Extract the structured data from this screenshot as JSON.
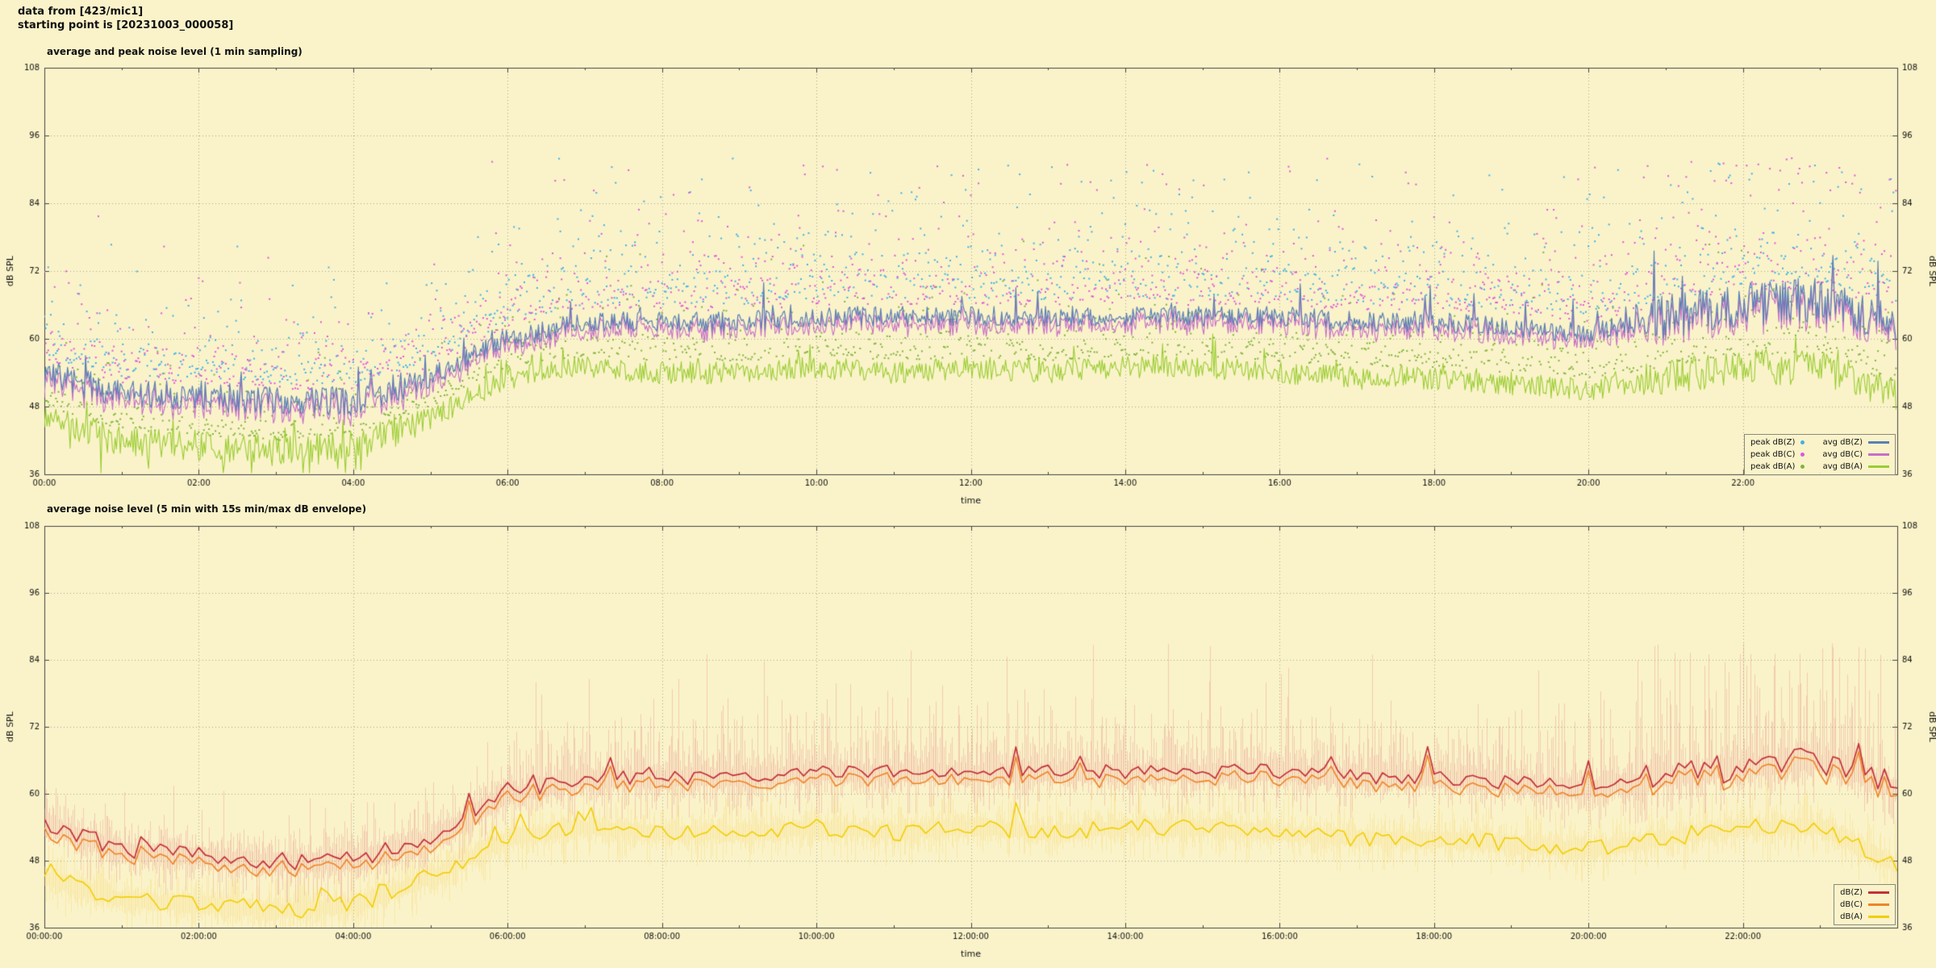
{
  "header": {
    "line1": "data from [423/mic1]",
    "line2": "starting point is [20231003_000058]"
  },
  "palette": {
    "background": "#FAF3CA",
    "grid": "#8a8a7a",
    "frame": "#444444",
    "text": "#111111"
  },
  "chart_data": [
    {
      "type": "line",
      "subtype": "lines with peak scatter",
      "title": "average and peak noise level (1 min sampling)",
      "xlabel": "time",
      "ylabel": "dB SPL",
      "ylabel_right": "dB SPL",
      "x_range_hours": [
        0,
        24
      ],
      "ylim": [
        36,
        108
      ],
      "yticks": [
        36,
        48,
        60,
        72,
        84,
        96,
        108
      ],
      "xtick_hours": [
        0,
        2,
        4,
        6,
        8,
        10,
        12,
        14,
        16,
        18,
        20,
        22
      ],
      "xtick_labels": [
        "00:00",
        "02:00",
        "04:00",
        "06:00",
        "08:00",
        "10:00",
        "12:00",
        "14:00",
        "16:00",
        "18:00",
        "20:00",
        "22:00"
      ],
      "grid": "dotted",
      "legend_position": "bottom-right",
      "legend": [
        {
          "label": "peak dB(Z)",
          "style": "dot",
          "color": "#3FB0E8"
        },
        {
          "label": "peak dB(C)",
          "style": "dot",
          "color": "#E055D8"
        },
        {
          "label": "peak dB(A)",
          "style": "dot",
          "color": "#7FB439"
        },
        {
          "label": "avg dB(Z)",
          "style": "line",
          "color": "#5B7FB4"
        },
        {
          "label": "avg dB(C)",
          "style": "line",
          "color": "#C86EC8"
        },
        {
          "label": "avg dB(A)",
          "style": "line",
          "color": "#9ACD32"
        }
      ],
      "anchor_hours": [
        0,
        1,
        2,
        3,
        4,
        5,
        6,
        7,
        8,
        9,
        10,
        11,
        12,
        13,
        14,
        15,
        16,
        17,
        18,
        19,
        20,
        21,
        22,
        23,
        24
      ],
      "series": [
        {
          "name": "avg dB(Z)",
          "color": "#5B7FB4",
          "values": [
            54,
            50,
            50,
            49,
            49,
            53,
            60,
            63,
            63,
            63,
            64,
            64,
            64,
            64,
            64,
            64,
            64,
            63,
            63,
            62,
            61,
            64,
            66,
            67,
            62
          ]
        },
        {
          "name": "avg dB(C)",
          "color": "#C86EC8",
          "values": [
            53,
            49,
            49,
            48,
            48,
            52,
            59,
            62,
            62,
            62,
            63,
            63,
            63,
            63,
            63,
            63,
            63,
            62,
            62,
            61,
            60,
            63,
            65,
            66,
            61
          ]
        },
        {
          "name": "avg dB(A)",
          "color": "#9ACD32",
          "values": [
            46,
            42,
            41,
            40,
            41,
            46,
            53,
            55,
            54,
            54,
            55,
            54,
            55,
            54,
            55,
            55,
            54,
            53,
            53,
            52,
            51,
            53,
            55,
            55,
            50
          ]
        }
      ],
      "scatter": [
        {
          "name": "peak dB(Z)",
          "color": "#3FB0E8",
          "typical_offset_db": 8,
          "max_db": 92
        },
        {
          "name": "peak dB(C)",
          "color": "#E055D8",
          "typical_offset_db": 8,
          "max_db": 92
        },
        {
          "name": "peak dB(A)",
          "color": "#7FB439",
          "typical_offset_db": 5,
          "max_db": 78
        }
      ],
      "noise": {
        "night_amp_db": 2.6,
        "day_amp_db": 1.8,
        "late_evening_amp_db": 4.0,
        "spike_probability": 0.03
      }
    },
    {
      "type": "line",
      "subtype": "lines with min/max envelope",
      "title": "average noise level (5 min with 15s min/max dB envelope)",
      "xlabel": "time",
      "ylabel": "dB SPL",
      "ylabel_right": "dB SPL",
      "x_range_hours": [
        0,
        24
      ],
      "ylim": [
        36,
        108
      ],
      "yticks": [
        36,
        48,
        60,
        72,
        84,
        96,
        108
      ],
      "xtick_hours": [
        0,
        2,
        4,
        6,
        8,
        10,
        12,
        14,
        16,
        18,
        20,
        22
      ],
      "xtick_labels": [
        "00:00:00",
        "02:00:00",
        "04:00:00",
        "06:00:00",
        "08:00:00",
        "10:00:00",
        "12:00:00",
        "14:00:00",
        "16:00:00",
        "18:00:00",
        "20:00:00",
        "22:00:00"
      ],
      "grid": "dotted",
      "legend_position": "bottom-right",
      "legend": [
        {
          "label": "dB(Z)",
          "style": "line",
          "color": "#C43039"
        },
        {
          "label": "dB(C)",
          "style": "line",
          "color": "#F08428"
        },
        {
          "label": "dB(A)",
          "style": "line",
          "color": "#F2CE02"
        }
      ],
      "anchor_hours": [
        0,
        1,
        2,
        3,
        4,
        5,
        6,
        7,
        8,
        9,
        10,
        11,
        12,
        13,
        14,
        15,
        16,
        17,
        18,
        19,
        20,
        21,
        22,
        23,
        24
      ],
      "series": [
        {
          "name": "dB(Z)",
          "color": "#C43039",
          "values": [
            55,
            50,
            49,
            48,
            48,
            52,
            60,
            63,
            63,
            63,
            64,
            64,
            64,
            64,
            64,
            64,
            64,
            63,
            63,
            62,
            61,
            63,
            65,
            66,
            61
          ]
        },
        {
          "name": "dB(C)",
          "color": "#F08428",
          "values": [
            54,
            49,
            48,
            47,
            47,
            51,
            59,
            62,
            62,
            62,
            63,
            63,
            63,
            63,
            63,
            63,
            63,
            62,
            62,
            61,
            60,
            62,
            64,
            65,
            60
          ]
        },
        {
          "name": "dB(A)",
          "color": "#F2CE02",
          "values": [
            45,
            41,
            40,
            39,
            40,
            45,
            52,
            54,
            53,
            53,
            54,
            53,
            54,
            53,
            54,
            54,
            53,
            52,
            52,
            51,
            50,
            52,
            54,
            54,
            47
          ]
        }
      ],
      "envelope": {
        "pink_color": "rgba(228,118,118,0.32)",
        "yellow_color": "rgba(248,210,80,0.30)",
        "typical_span_db": 8,
        "late_evening_max_db": 87
      },
      "noise": {
        "line_amp_db": 1.3,
        "late_evening_amp_db": 2.6,
        "spike_probability": 0.05
      }
    }
  ]
}
